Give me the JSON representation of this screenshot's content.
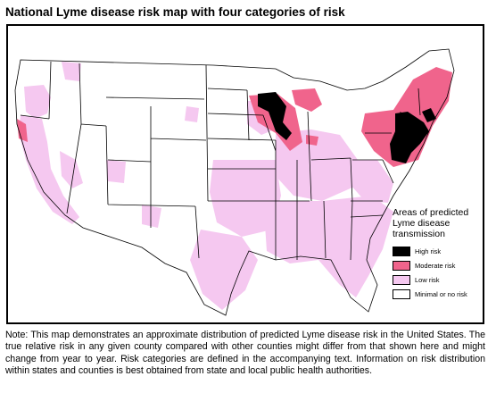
{
  "title": "National Lyme disease risk map with four categories of risk",
  "note": "Note: This map demonstrates an approximate distribution of predicted Lyme disease risk in the United States. The true relative risk in any given county compared with other counties might differ from that shown here and might change from year to year. Risk categories are defined in the accompanying text. Information on risk distribution within states and counties is best obtained from state and local public health authorities.",
  "legend": {
    "heading": "Areas of predicted Lyme disease transmission",
    "items": [
      {
        "label": "High risk",
        "color": "#000000"
      },
      {
        "label": "Moderate risk",
        "color": "#f0648c"
      },
      {
        "label": "Low risk",
        "color": "#f5c8f0"
      },
      {
        "label": "Minimal or no risk",
        "color": "#ffffff"
      }
    ]
  },
  "colors": {
    "high": "#000000",
    "moderate": "#f0648c",
    "low": "#f5c8f0",
    "minimal": "#ffffff",
    "border": "#000000"
  }
}
